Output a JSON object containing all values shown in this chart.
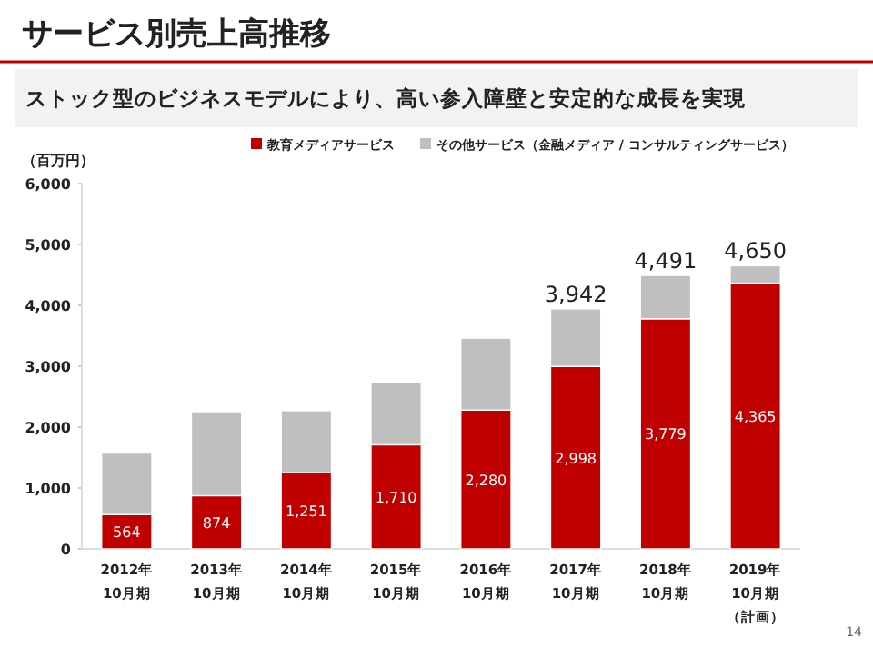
{
  "chart_data": {
    "type": "bar",
    "title": "サービス別売上高推移",
    "subtitle": "ストック型のビジネスモデルにより、高い参入障壁と安定的な成長を実現",
    "ylabel": "（百万円）",
    "stacked": true,
    "legend": "top",
    "grid": false,
    "categories": [
      "2012年\n10月期",
      "2013年\n10月期",
      "2014年\n10月期",
      "2015年\n10月期",
      "2016年\n10月期",
      "2017年\n10月期",
      "2018年\n10月期",
      "2019年\n10月期（計画）"
    ],
    "series": [
      {
        "name": "教育メディアサービス",
        "color": "#c00000",
        "values": [
          564,
          874,
          1251,
          1710,
          2280,
          2998,
          3779,
          4365
        ],
        "value_labels": [
          "564",
          "874",
          "1,251",
          "1,710",
          "2,280",
          "2,998",
          "3,779",
          "4,365"
        ]
      },
      {
        "name": "その他サービス（金融メディア / コンサルティングサービス）",
        "color": "#bfbfbf",
        "values": [
          1010,
          1380,
          1020,
          1030,
          1180,
          944,
          712,
          285
        ]
      }
    ],
    "totals": [
      null,
      null,
      null,
      null,
      null,
      "3,942",
      "4,491",
      "4,650"
    ],
    "ylim": [
      0,
      6000
    ],
    "yticks": [
      {
        "value": 0,
        "label": "0"
      },
      {
        "value": 1000,
        "label": "1,000"
      },
      {
        "value": 2000,
        "label": "2,000"
      },
      {
        "value": 3000,
        "label": "3,000"
      },
      {
        "value": 4000,
        "label": "4,000"
      },
      {
        "value": 5000,
        "label": "5,000"
      },
      {
        "value": 6000,
        "label": "6,000"
      }
    ],
    "annotations": [
      "14"
    ]
  }
}
